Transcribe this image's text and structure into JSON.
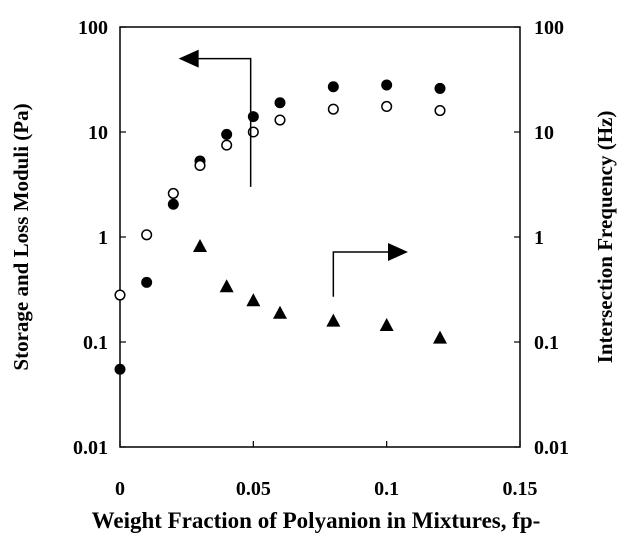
{
  "chart_data": {
    "type": "scatter",
    "xlabel": "Weight Fraction of Polyanion in Mixtures, fp-",
    "ylabel": "Storage and Loss Moduli (Pa)",
    "y2label": "Intersection Frequency (Hz)",
    "xlim": [
      0,
      0.15
    ],
    "ylim": [
      0.01,
      100
    ],
    "y2lim": [
      0.01,
      100
    ],
    "yscale": "log",
    "grid": false,
    "x_ticks": [
      "0",
      "0.05",
      "0.1",
      "0.15"
    ],
    "y_ticks": [
      "0.01",
      "0.1",
      "1",
      "10",
      "100"
    ],
    "y2_ticks": [
      "0.01",
      "0.1",
      "1",
      "10",
      "100"
    ],
    "series": [
      {
        "marker": "filled-circle",
        "axis": "left",
        "x": [
          0,
          0.01,
          0.02,
          0.03,
          0.04,
          0.05,
          0.06,
          0.08,
          0.1,
          0.12
        ],
        "y": [
          0.055,
          0.37,
          2.05,
          5.3,
          9.5,
          14,
          19,
          27,
          28,
          26
        ]
      },
      {
        "marker": "open-circle",
        "axis": "left",
        "x": [
          0,
          0.01,
          0.02,
          0.03,
          0.04,
          0.05,
          0.06,
          0.08,
          0.1,
          0.12
        ],
        "y": [
          0.28,
          1.05,
          2.6,
          4.8,
          7.5,
          10,
          13,
          16.5,
          17.5,
          16
        ]
      },
      {
        "marker": "filled-triangle",
        "axis": "right",
        "x": [
          0.03,
          0.04,
          0.05,
          0.06,
          0.08,
          0.1,
          0.12
        ],
        "y": [
          0.82,
          0.34,
          0.25,
          0.19,
          0.16,
          0.145,
          0.11
        ]
      }
    ],
    "annotations": [
      {
        "type": "arrow",
        "direction": "left",
        "points_to_axis": "left"
      },
      {
        "type": "arrow",
        "direction": "right",
        "points_to_axis": "right"
      }
    ]
  }
}
